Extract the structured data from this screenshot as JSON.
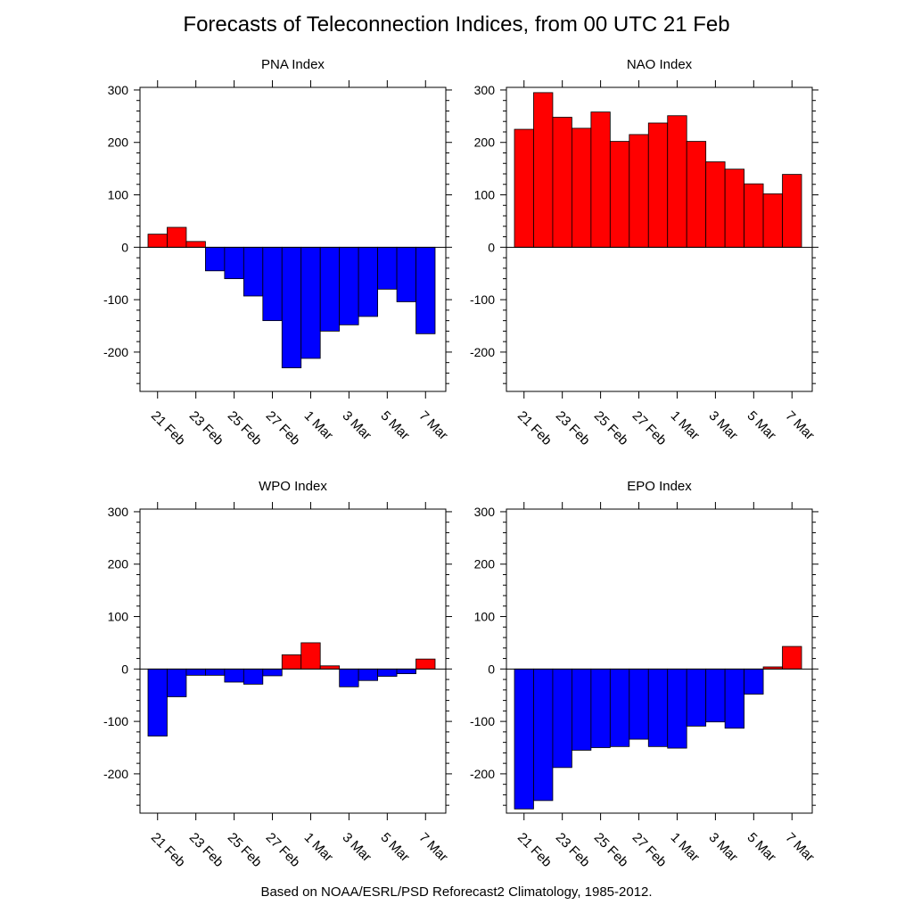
{
  "title": "Forecasts of Teleconnection Indices, from 00 UTC 21 Feb",
  "footer": "Based on NOAA/ESRL/PSD Reforecast2 Climatology, 1985-2012.",
  "colors": {
    "positive": "#ff0000",
    "negative": "#0000ff",
    "outline": "#000000"
  },
  "chart_data": [
    {
      "type": "bar",
      "title": "PNA Index",
      "x": [
        "21 Feb",
        "22 Feb",
        "23 Feb",
        "24 Feb",
        "25 Feb",
        "26 Feb",
        "27 Feb",
        "28 Feb",
        "1 Mar",
        "2 Mar",
        "3 Mar",
        "4 Mar",
        "5 Mar",
        "6 Mar",
        "7 Mar"
      ],
      "xtick_labels": [
        "21 Feb",
        "23 Feb",
        "25 Feb",
        "27 Feb",
        "1 Mar",
        "3 Mar",
        "5 Mar",
        "7 Mar"
      ],
      "values": [
        25,
        38,
        11,
        -45,
        -60,
        -93,
        -140,
        -230,
        -212,
        -160,
        -148,
        -132,
        -80,
        -104,
        -165
      ],
      "ylim": [
        -275,
        305
      ],
      "yticks": [
        -200,
        -100,
        0,
        100,
        200,
        300
      ]
    },
    {
      "type": "bar",
      "title": "NAO Index",
      "x": [
        "21 Feb",
        "22 Feb",
        "23 Feb",
        "24 Feb",
        "25 Feb",
        "26 Feb",
        "27 Feb",
        "28 Feb",
        "1 Mar",
        "2 Mar",
        "3 Mar",
        "4 Mar",
        "5 Mar",
        "6 Mar",
        "7 Mar"
      ],
      "xtick_labels": [
        "21 Feb",
        "23 Feb",
        "25 Feb",
        "27 Feb",
        "1 Mar",
        "3 Mar",
        "5 Mar",
        "7 Mar"
      ],
      "values": [
        225,
        295,
        248,
        227,
        258,
        202,
        215,
        237,
        251,
        202,
        163,
        149,
        121,
        102,
        139
      ],
      "ylim": [
        -275,
        305
      ],
      "yticks": [
        -200,
        -100,
        0,
        100,
        200,
        300
      ]
    },
    {
      "type": "bar",
      "title": "WPO Index",
      "x": [
        "21 Feb",
        "22 Feb",
        "23 Feb",
        "24 Feb",
        "25 Feb",
        "26 Feb",
        "27 Feb",
        "28 Feb",
        "1 Mar",
        "2 Mar",
        "3 Mar",
        "4 Mar",
        "5 Mar",
        "6 Mar",
        "7 Mar"
      ],
      "xtick_labels": [
        "21 Feb",
        "23 Feb",
        "25 Feb",
        "27 Feb",
        "1 Mar",
        "3 Mar",
        "5 Mar",
        "7 Mar"
      ],
      "values": [
        -128,
        -53,
        -12,
        -12,
        -25,
        -29,
        -13,
        27,
        50,
        6,
        -34,
        -22,
        -14,
        -9,
        19
      ],
      "ylim": [
        -275,
        305
      ],
      "yticks": [
        -200,
        -100,
        0,
        100,
        200,
        300
      ]
    },
    {
      "type": "bar",
      "title": "EPO Index",
      "x": [
        "21 Feb",
        "22 Feb",
        "23 Feb",
        "24 Feb",
        "25 Feb",
        "26 Feb",
        "27 Feb",
        "28 Feb",
        "1 Mar",
        "2 Mar",
        "3 Mar",
        "4 Mar",
        "5 Mar",
        "6 Mar",
        "7 Mar"
      ],
      "xtick_labels": [
        "21 Feb",
        "23 Feb",
        "25 Feb",
        "27 Feb",
        "1 Mar",
        "3 Mar",
        "5 Mar",
        "7 Mar"
      ],
      "values": [
        -267,
        -251,
        -188,
        -155,
        -150,
        -148,
        -134,
        -148,
        -151,
        -109,
        -101,
        -113,
        -48,
        4,
        43
      ],
      "ylim": [
        -275,
        305
      ],
      "yticks": [
        -200,
        -100,
        0,
        100,
        200,
        300
      ]
    }
  ]
}
